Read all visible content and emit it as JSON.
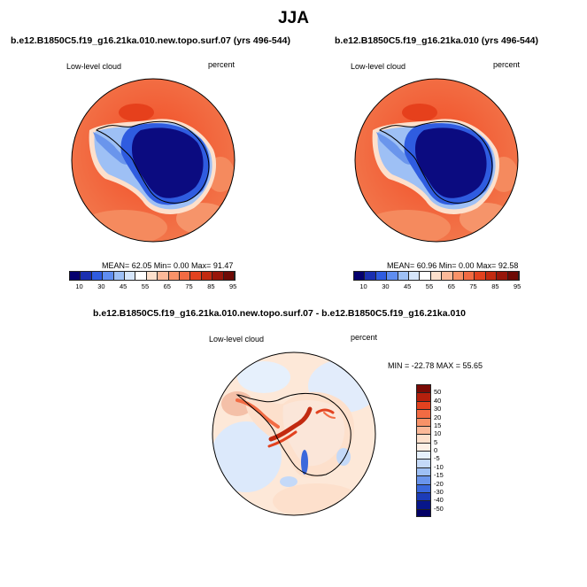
{
  "title": "JJA",
  "panel_left": {
    "title": "b.e12.B1850C5.f19_g16.21ka.010.new.topo.surf.07 (yrs 496-544)",
    "variable": "Low-level cloud",
    "units": "percent",
    "stats": "MEAN=  62.05  Min=   0.00  Max=  91.47"
  },
  "panel_right": {
    "title": "b.e12.B1850C5.f19_g16.21ka.010 (yrs 496-544)",
    "variable": "Low-level cloud",
    "units": "percent",
    "stats": "MEAN=  60.96  Min=   0.00  Max=  92.58"
  },
  "panel_diff": {
    "title": "b.e12.B1850C5.f19_g16.21ka.010.new.topo.surf.07 - b.e12.B1850C5.f19_g16.21ka.010",
    "variable": "Low-level cloud",
    "units": "percent",
    "stats": "MIN = -22.78 MAX =  55.65"
  },
  "colorbar_top": {
    "labels": [
      "10",
      "30",
      "45",
      "55",
      "65",
      "75",
      "85",
      "95"
    ],
    "colors": [
      "#05006e",
      "#1a2fb0",
      "#2f5ce0",
      "#5f8df0",
      "#9ec0f5",
      "#d6e6fb",
      "#ffffff",
      "#fde0cc",
      "#fbb999",
      "#f89268",
      "#f26b43",
      "#e2421f",
      "#c22a10",
      "#98160a",
      "#6e0a05"
    ]
  },
  "colorbar_diff": {
    "labels": [
      "50",
      "40",
      "30",
      "20",
      "15",
      "10",
      "5",
      "0",
      "-5",
      "-10",
      "-15",
      "-20",
      "-30",
      "-40",
      "-50"
    ],
    "colors": [
      "#7a0a05",
      "#b5200d",
      "#e2421f",
      "#f26b43",
      "#f89268",
      "#fbb999",
      "#fde0cc",
      "#fef0e6",
      "#e6f0fc",
      "#c4d9f8",
      "#9ec0f5",
      "#6a95ec",
      "#3a68dc",
      "#1c3cb8",
      "#07168a",
      "#030066"
    ]
  }
}
